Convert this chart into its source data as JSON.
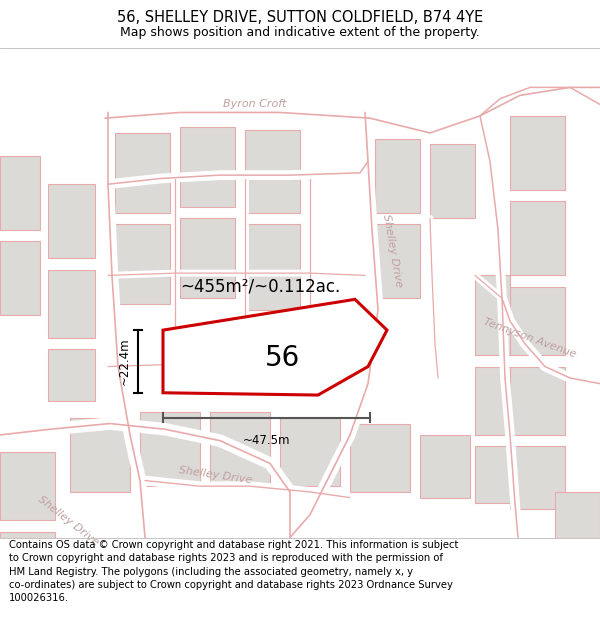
{
  "title": "56, SHELLEY DRIVE, SUTTON COLDFIELD, B74 4YE",
  "subtitle": "Map shows position and indicative extent of the property.",
  "footer": "Contains OS data © Crown copyright and database right 2021. This information is subject\nto Crown copyright and database rights 2023 and is reproduced with the permission of\nHM Land Registry. The polygons (including the associated geometry, namely x, y\nco-ordinates) are subject to Crown copyright and database rights 2023 Ordnance Survey\n100026316.",
  "map_bg": "#f7f6f4",
  "road_line_color": "#e8aaaa",
  "road_fill_color": "#ffffff",
  "block_fill": "#dcdad7",
  "block_edge": "#e8aaaa",
  "plot_color": "#cc0000",
  "area_text": "~455m²/~0.112ac.",
  "property_number": "56",
  "dim_width": "~47.5m",
  "dim_height": "~22.4m",
  "title_fontsize": 10.5,
  "subtitle_fontsize": 9,
  "footer_fontsize": 7.2,
  "road_label_color": "#c0a0a0",
  "road_label_size": 8
}
